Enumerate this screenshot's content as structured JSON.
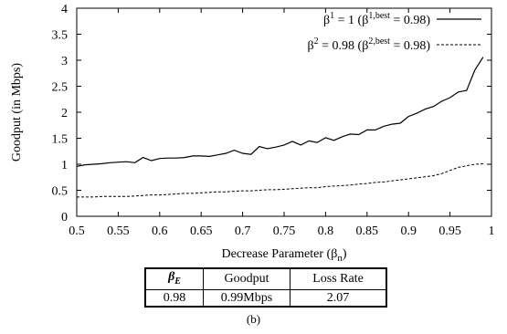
{
  "chart_data": {
    "type": "line",
    "xlabel": "Decrease Parameter (β_n)",
    "ylabel": "Goodput (in Mbps)",
    "xlim": [
      0.5,
      1.0
    ],
    "ylim": [
      0,
      4
    ],
    "xticks": [
      "0.5",
      "0.55",
      "0.6",
      "0.65",
      "0.7",
      "0.75",
      "0.8",
      "0.85",
      "0.9",
      "0.95",
      "1"
    ],
    "yticks": [
      "0",
      "0.5",
      "1",
      "1.5",
      "2",
      "2.5",
      "3",
      "3.5",
      "4"
    ],
    "grid": false,
    "legend_position": "top-right",
    "x": [
      0.5,
      0.51,
      0.52,
      0.53,
      0.54,
      0.55,
      0.56,
      0.57,
      0.58,
      0.59,
      0.6,
      0.61,
      0.62,
      0.63,
      0.64,
      0.65,
      0.66,
      0.67,
      0.68,
      0.69,
      0.7,
      0.71,
      0.72,
      0.73,
      0.74,
      0.75,
      0.76,
      0.77,
      0.78,
      0.79,
      0.8,
      0.81,
      0.82,
      0.83,
      0.84,
      0.85,
      0.86,
      0.87,
      0.88,
      0.89,
      0.9,
      0.91,
      0.92,
      0.93,
      0.94,
      0.95,
      0.96,
      0.97,
      0.98,
      0.99
    ],
    "series": [
      {
        "name": "β¹ = 1 (β^{1,best} = 0.98)",
        "style": "solid",
        "values": [
          0.96,
          0.99,
          1.0,
          1.01,
          1.03,
          1.04,
          1.05,
          1.03,
          1.13,
          1.07,
          1.11,
          1.12,
          1.12,
          1.13,
          1.16,
          1.16,
          1.15,
          1.18,
          1.21,
          1.27,
          1.21,
          1.19,
          1.34,
          1.3,
          1.33,
          1.37,
          1.44,
          1.37,
          1.45,
          1.42,
          1.51,
          1.46,
          1.53,
          1.58,
          1.57,
          1.66,
          1.66,
          1.73,
          1.77,
          1.79,
          1.92,
          1.98,
          2.06,
          2.11,
          2.21,
          2.28,
          2.39,
          2.42,
          2.81,
          3.06
        ]
      },
      {
        "name": "β² = 0.98 (β^{2,best} = 0.98)",
        "style": "dashed",
        "values": [
          0.37,
          0.37,
          0.37,
          0.38,
          0.38,
          0.38,
          0.38,
          0.39,
          0.4,
          0.41,
          0.41,
          0.42,
          0.43,
          0.44,
          0.44,
          0.45,
          0.46,
          0.47,
          0.47,
          0.48,
          0.49,
          0.49,
          0.5,
          0.51,
          0.51,
          0.52,
          0.53,
          0.54,
          0.55,
          0.55,
          0.57,
          0.58,
          0.59,
          0.6,
          0.62,
          0.63,
          0.65,
          0.66,
          0.68,
          0.7,
          0.72,
          0.74,
          0.76,
          0.78,
          0.82,
          0.88,
          0.94,
          0.97,
          1.0,
          1.01
        ]
      }
    ]
  },
  "legend": {
    "entry1": {
      "prefix": "β",
      "sup": "1",
      "mid": " = 1 (β",
      "sup2": "1,best",
      "suffix": " = 0.98)"
    },
    "entry2": {
      "prefix": "β",
      "sup": "2",
      "mid": " = 0.98 (β",
      "sup2": "2,best",
      "suffix": " = 0.98)"
    }
  },
  "table": {
    "headers": [
      "β",
      "Goodput",
      "Loss Rate"
    ],
    "header_sub": "E",
    "row": [
      "0.98",
      "0.99Mbps",
      "2.07"
    ]
  },
  "caption": "(b)",
  "axis": {
    "xlabel_main": "Decrease Parameter (β",
    "xlabel_sub": "n",
    "xlabel_close": ")"
  }
}
